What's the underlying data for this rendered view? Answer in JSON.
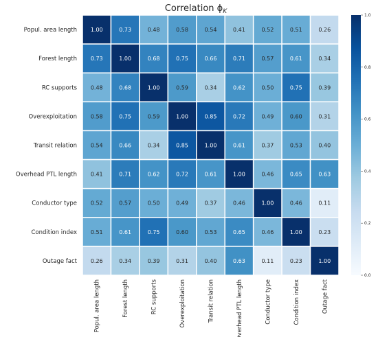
{
  "chart_data": {
    "type": "heatmap",
    "title": "Correlation ϕ",
    "title_subscript": "K",
    "variables": [
      "Popul. area length",
      "Forest length",
      "RC supports",
      "Overexploitation",
      "Transit relation",
      "Overhead PTL length",
      "Conductor type",
      "Condition index",
      "Outage fact"
    ],
    "matrix": [
      [
        1.0,
        0.73,
        0.48,
        0.58,
        0.54,
        0.41,
        0.52,
        0.51,
        0.26
      ],
      [
        0.73,
        1.0,
        0.68,
        0.75,
        0.66,
        0.71,
        0.57,
        0.61,
        0.34
      ],
      [
        0.48,
        0.68,
        1.0,
        0.59,
        0.34,
        0.62,
        0.5,
        0.75,
        0.39
      ],
      [
        0.58,
        0.75,
        0.59,
        1.0,
        0.85,
        0.72,
        0.49,
        0.6,
        0.31
      ],
      [
        0.54,
        0.66,
        0.34,
        0.85,
        1.0,
        0.61,
        0.37,
        0.53,
        0.4
      ],
      [
        0.41,
        0.71,
        0.62,
        0.72,
        0.61,
        1.0,
        0.46,
        0.65,
        0.63
      ],
      [
        0.52,
        0.57,
        0.5,
        0.49,
        0.37,
        0.46,
        1.0,
        0.46,
        0.11
      ],
      [
        0.51,
        0.61,
        0.75,
        0.6,
        0.53,
        0.65,
        0.46,
        1.0,
        0.23
      ],
      [
        0.26,
        0.34,
        0.39,
        0.31,
        0.4,
        0.63,
        0.11,
        0.23,
        1.0
      ]
    ],
    "value_range": [
      0,
      1
    ],
    "colorbar_ticks": [
      0.0,
      0.2,
      0.4,
      0.6,
      0.8,
      1.0
    ],
    "colormap": "Blues",
    "grid": true,
    "legend": "colorbar-right"
  },
  "colors": {
    "low": "#f7fbff",
    "high": "#08306b",
    "cell_border": "#ffffff",
    "text_dark": "#262626",
    "text_light": "#ffffff"
  }
}
